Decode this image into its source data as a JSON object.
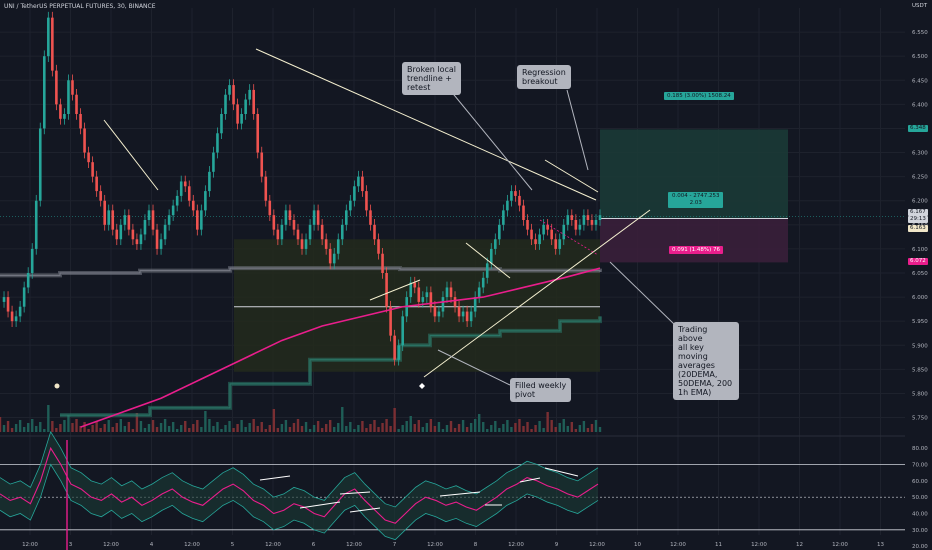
{
  "header": {
    "title": "UNI / TetherUS PERPETUAL FUTURES, 30, BINANCE"
  },
  "currency": "USDT",
  "annotations": {
    "broken_trendline": "Broken local\ntrendline +\nretest",
    "regression": "Regression\nbreakout",
    "trading_above": "Trading above\nall key\nmoving\naverages\n(20DEMA,\n50DEMA, 200\n1h EMA)",
    "weekly_pivot": "Filled weekly\npivot"
  },
  "trade": {
    "target_label": "0.185 (3.00%) 1508.24",
    "entry_label_line1": "0.004 - 2747.253",
    "entry_label_line2": "2.03",
    "stop_label": "0.091 (1.48%) 76",
    "target_price": 6.348,
    "entry_price": 6.163,
    "stop_price": 6.072
  },
  "price_tags": [
    {
      "value": "6.348",
      "bg": "#26a69a",
      "fg": "#131722"
    },
    {
      "value": "6.167",
      "bg": "#d1d4dc",
      "fg": "#131722"
    },
    {
      "value": "29:13",
      "bg": "#d1d4dc",
      "fg": "#131722"
    },
    {
      "value": "6.163",
      "bg": "#f0e6c8",
      "fg": "#131722"
    },
    {
      "value": "6.072",
      "bg": "#e91e8c",
      "fg": "#ffffff"
    }
  ],
  "colors": {
    "background": "#131722",
    "up": "#26a69a",
    "down": "#ef5350",
    "ema200": "#e91e8c",
    "rsi": "#e91e8c",
    "grid": "#1e222d",
    "box": "#2a2e1e",
    "band": "#2b7a6a"
  },
  "chart_data": [
    {
      "type": "line",
      "title": "UNI / TetherUS PERPETUAL FUTURES, 30, BINANCE",
      "y_axis": {
        "min": 5.72,
        "max": 6.6,
        "ticks": [
          "6.550",
          "6.500",
          "6.450",
          "6.400",
          "6.350",
          "6.300",
          "6.250",
          "6.200",
          "6.150",
          "6.100",
          "6.050",
          "6.000",
          "5.950",
          "5.900",
          "5.850",
          "5.800",
          "5.750"
        ]
      },
      "x_axis": {
        "ticks": [
          "12:00",
          "3",
          "12:00",
          "4",
          "12:00",
          "5",
          "12:00",
          "6",
          "12:00",
          "7",
          "12:00",
          "8",
          "12:00",
          "9",
          "12:00",
          "10",
          "12:00",
          "11",
          "12:00",
          "12",
          "12:00",
          "13"
        ]
      },
      "series": [
        {
          "name": "",
          "x": [
            0,
            2,
            4,
            6,
            8,
            10,
            12,
            14,
            16,
            18,
            20,
            22,
            24,
            26,
            28,
            30,
            32,
            34,
            36,
            38,
            40,
            42,
            44,
            46,
            48,
            50,
            52,
            54,
            56,
            58,
            60,
            62,
            64,
            66,
            68,
            70,
            72,
            74,
            76,
            78,
            80,
            82,
            84,
            86,
            88,
            90,
            92,
            94,
            96,
            98,
            100,
            102,
            104,
            106,
            108,
            110,
            112,
            114,
            116,
            118,
            120,
            122,
            124,
            126,
            128,
            130,
            132,
            134,
            136,
            138,
            140,
            142,
            144,
            146,
            148,
            150,
            152,
            154,
            156,
            158,
            160,
            162,
            164,
            166,
            168,
            170,
            172,
            174,
            176,
            178,
            180,
            182,
            184,
            186,
            188,
            190,
            192,
            194,
            196,
            198,
            200,
            202,
            204,
            206,
            208,
            210,
            212,
            214,
            216,
            218,
            220,
            222,
            224,
            226,
            228,
            230,
            232,
            234,
            236,
            238,
            240,
            242,
            244,
            246,
            248,
            250,
            252,
            254,
            256,
            258,
            260,
            262,
            264,
            266,
            268,
            270,
            272,
            274,
            276,
            278,
            280,
            282,
            284,
            286,
            288,
            290,
            292,
            294,
            296,
            298
          ],
          "y": [
            5.99,
            6.0,
            5.97,
            5.95,
            5.96,
            5.98,
            6.02,
            6.05,
            6.1,
            6.2,
            6.35,
            6.5,
            6.58,
            6.47,
            6.4,
            6.37,
            6.38,
            6.45,
            6.42,
            6.38,
            6.35,
            6.3,
            6.28,
            6.25,
            6.22,
            6.2,
            6.15,
            6.18,
            6.14,
            6.12,
            6.15,
            6.17,
            6.14,
            6.12,
            6.11,
            6.13,
            6.16,
            6.18,
            6.14,
            6.1,
            6.12,
            6.15,
            6.17,
            6.19,
            6.21,
            6.24,
            6.23,
            6.2,
            6.18,
            6.14,
            6.18,
            6.22,
            6.26,
            6.3,
            6.34,
            6.38,
            6.42,
            6.44,
            6.4,
            6.36,
            6.38,
            6.41,
            6.43,
            6.38,
            6.3,
            6.25,
            6.2,
            6.17,
            6.14,
            6.12,
            6.15,
            6.18,
            6.16,
            6.14,
            6.12,
            6.1,
            6.12,
            6.15,
            6.18,
            6.15,
            6.12,
            6.1,
            6.07,
            6.09,
            6.12,
            6.15,
            6.18,
            6.2,
            6.23,
            6.25,
            6.22,
            6.18,
            6.15,
            6.12,
            6.09,
            6.05,
            5.98,
            5.92,
            5.87,
            5.9,
            5.96,
            6.0,
            6.03,
            6.02,
            5.99,
            6.0,
            6.01,
            5.98,
            5.96,
            5.97,
            6.0,
            6.02,
            6.0,
            5.98,
            5.96,
            5.97,
            5.95,
            5.97,
            6.0,
            6.02,
            6.04,
            6.07,
            6.1,
            6.12,
            6.15,
            6.18,
            6.2,
            6.22,
            6.21,
            6.19,
            6.16,
            6.14,
            6.12,
            6.11,
            6.13,
            6.15,
            6.14,
            6.12,
            6.1,
            6.12,
            6.15,
            6.17,
            6.16,
            6.14,
            6.15,
            6.17,
            6.16,
            6.15,
            6.16,
            6.17
          ]
        },
        {
          "name": "",
          "x": [
            40,
            60,
            80,
            100,
            120,
            140,
            160,
            180,
            200,
            220,
            240,
            260,
            280,
            298
          ],
          "y": [
            5.73,
            5.76,
            5.79,
            5.83,
            5.87,
            5.91,
            5.94,
            5.96,
            5.98,
            5.99,
            6.0,
            6.02,
            6.04,
            6.06
          ]
        }
      ]
    },
    {
      "type": "line",
      "y_axis": {
        "min": 25,
        "max": 85,
        "ticks": [
          "80.00",
          "70.00",
          "60.00",
          "50.00",
          "40.00",
          "30.00",
          "20.00"
        ]
      },
      "series": [
        {
          "name": "",
          "x": [
            0,
            5,
            10,
            15,
            20,
            25,
            30,
            35,
            40,
            45,
            50,
            55,
            60,
            65,
            70,
            75,
            80,
            85,
            90,
            95,
            100,
            105,
            110,
            115,
            120,
            125,
            130,
            135,
            140,
            145,
            150,
            155,
            160,
            165,
            170,
            175,
            180,
            185,
            190,
            195,
            200,
            205,
            210,
            215,
            220,
            225,
            230,
            235,
            240,
            245,
            250,
            255,
            260,
            265,
            270,
            275,
            280,
            285,
            290,
            295
          ],
          "y": [
            52,
            48,
            50,
            46,
            60,
            80,
            70,
            58,
            55,
            50,
            48,
            52,
            47,
            50,
            45,
            48,
            52,
            55,
            50,
            47,
            45,
            50,
            55,
            58,
            54,
            48,
            45,
            40,
            42,
            46,
            44,
            40,
            38,
            45,
            52,
            55,
            48,
            42,
            36,
            34,
            40,
            46,
            50,
            48,
            45,
            47,
            44,
            42,
            46,
            50,
            55,
            58,
            62,
            60,
            57,
            55,
            52,
            50,
            54,
            58
          ]
        }
      ]
    }
  ]
}
